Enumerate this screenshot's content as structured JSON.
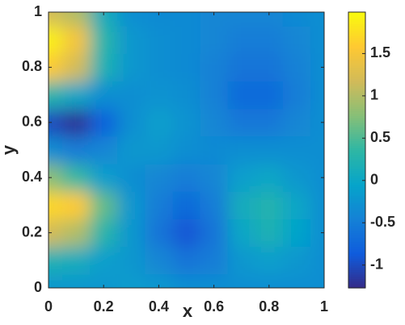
{
  "chart_data": {
    "type": "contourf",
    "xlabel": "x",
    "ylabel": "y",
    "x": [
      0,
      0.1,
      0.2,
      0.3,
      0.4,
      0.5,
      0.6,
      0.7,
      0.8,
      0.9,
      1
    ],
    "y": [
      0,
      0.1,
      0.2,
      0.3,
      0.4,
      0.5,
      0.6,
      0.7,
      0.8,
      0.9,
      1
    ],
    "z": [
      [
        -0.2,
        -0.2,
        -0.2,
        -0.15,
        -0.2,
        -0.3,
        -0.3,
        -0.3,
        -0.3,
        -0.3,
        -0.3
      ],
      [
        0.2,
        0.1,
        -0.1,
        -0.2,
        -0.4,
        -0.6,
        -0.5,
        -0.2,
        -0.1,
        -0.2,
        -0.3
      ],
      [
        1.2,
        1.0,
        0.3,
        -0.2,
        -0.6,
        -0.9,
        -0.6,
        0.0,
        0.2,
        -0.05,
        -0.3
      ],
      [
        1.7,
        1.6,
        0.6,
        -0.2,
        -0.5,
        -0.7,
        -0.5,
        0.1,
        0.25,
        0.0,
        -0.3
      ],
      [
        0.8,
        0.4,
        -0.1,
        -0.3,
        -0.4,
        -0.5,
        -0.4,
        -0.1,
        0.0,
        -0.2,
        -0.3
      ],
      [
        -0.3,
        -0.5,
        -0.4,
        -0.2,
        -0.2,
        -0.3,
        -0.35,
        -0.3,
        -0.3,
        -0.3,
        -0.3
      ],
      [
        -1.0,
        -1.2,
        -0.8,
        -0.3,
        -0.1,
        -0.25,
        -0.4,
        -0.55,
        -0.55,
        -0.4,
        -0.3
      ],
      [
        0.3,
        0.0,
        -0.3,
        -0.3,
        -0.25,
        -0.3,
        -0.45,
        -0.7,
        -0.7,
        -0.5,
        -0.3
      ],
      [
        1.6,
        1.2,
        0.2,
        -0.2,
        -0.3,
        -0.35,
        -0.45,
        -0.6,
        -0.6,
        -0.45,
        -0.3
      ],
      [
        1.9,
        1.5,
        0.3,
        -0.2,
        -0.3,
        -0.35,
        -0.4,
        -0.5,
        -0.5,
        -0.4,
        -0.3
      ],
      [
        1.2,
        1.0,
        0.1,
        -0.3,
        -0.35,
        -0.35,
        -0.4,
        -0.4,
        -0.4,
        -0.35,
        -0.3
      ]
    ],
    "xlim": [
      0,
      1
    ],
    "ylim": [
      0,
      1
    ],
    "xticks": [
      0,
      0.2,
      0.4,
      0.6,
      0.8,
      1
    ],
    "yticks": [
      0,
      0.2,
      0.4,
      0.6,
      0.8,
      1
    ],
    "clim": [
      -1.27,
      1.99
    ],
    "cticks": [
      -1,
      -0.5,
      0,
      0.5,
      1,
      1.5
    ],
    "colormap": [
      "#352a87",
      "#0f5cdd",
      "#1481d6",
      "#06a4ca",
      "#2eb7a4",
      "#87bf77",
      "#d1bb59",
      "#fec832",
      "#f9fb0e"
    ]
  }
}
